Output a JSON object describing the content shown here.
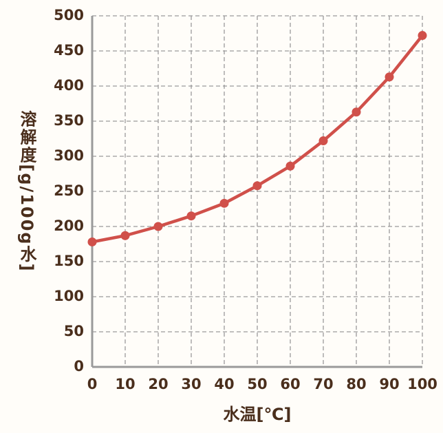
{
  "chart_data": {
    "type": "line",
    "x_label": "水温[℃]",
    "y_label": "溶解度[g/100g水]",
    "x": [
      0,
      10,
      20,
      30,
      40,
      50,
      60,
      70,
      80,
      90,
      100
    ],
    "series": [
      {
        "color": "#d0504a",
        "values": [
          178,
          187,
          200,
          215,
          233,
          258,
          286,
          322,
          363,
          413,
          472
        ]
      }
    ],
    "xlim": [
      0,
      100
    ],
    "xticks": [
      0,
      10,
      20,
      30,
      40,
      50,
      60,
      70,
      80,
      90,
      100
    ],
    "ylim": [
      0,
      500
    ],
    "yticks": [
      0,
      50,
      100,
      150,
      200,
      250,
      300,
      350,
      400,
      450,
      500
    ],
    "grid": true
  }
}
